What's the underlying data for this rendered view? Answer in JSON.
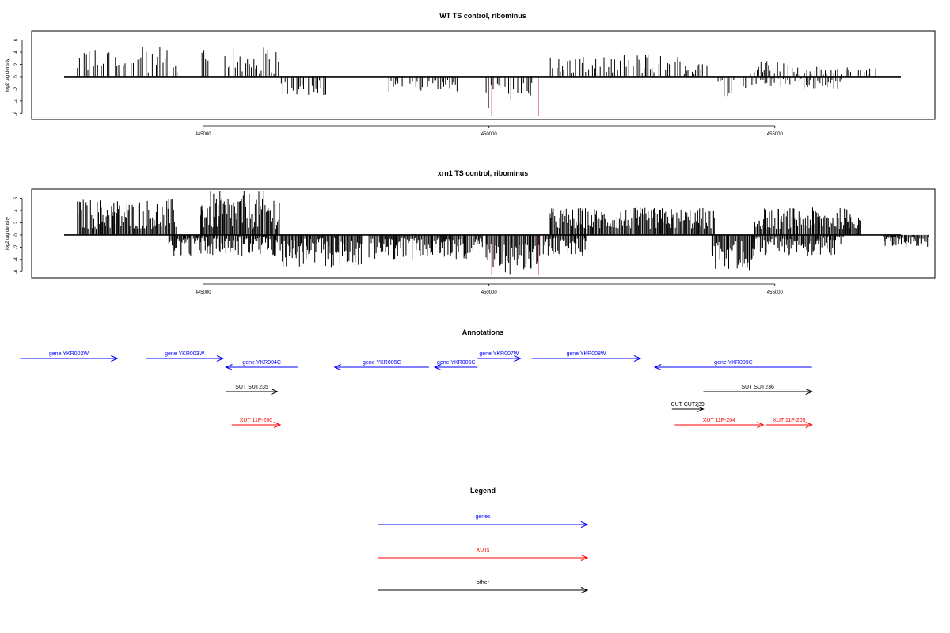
{
  "chart_data": [
    {
      "type": "bar",
      "title": "WT TS control, ribominus",
      "ylabel": "log2 tag density",
      "xlabel": "",
      "xlim": [
        442000,
        457800
      ],
      "ylim": [
        -7,
        7.5
      ],
      "grid": false,
      "x_ticks": [
        445000,
        450000,
        455000
      ],
      "x_tick_labels": [
        "445000",
        "450000",
        "455000"
      ],
      "y_ticks": [
        -6,
        -4,
        -2,
        0,
        2,
        4,
        6
      ],
      "y_tick_labels": [
        "-6",
        "-4",
        "-2",
        "0",
        "2",
        "4",
        "6"
      ],
      "density": "sparse",
      "series": [
        {
          "color": "#000000",
          "segments": [
            {
              "x0": 442800,
              "x1": 444550,
              "sign": 1,
              "min": 0.5,
              "max": 4.8
            },
            {
              "x0": 444980,
              "x1": 445150,
              "sign": 1,
              "min": 1.5,
              "max": 5.3
            },
            {
              "x0": 445380,
              "x1": 446350,
              "sign": 1,
              "min": 0.5,
              "max": 5.0
            },
            {
              "x0": 446300,
              "x1": 447150,
              "sign": -1,
              "min": 0.5,
              "max": 3.8
            },
            {
              "x0": 448250,
              "x1": 449450,
              "sign": -1,
              "min": 0.5,
              "max": 2.5
            },
            {
              "x0": 449950,
              "x1": 450800,
              "sign": -1,
              "min": 1.0,
              "max": 5.7
            },
            {
              "x0": 451050,
              "x1": 452200,
              "sign": 1,
              "min": 0.5,
              "max": 3.2
            },
            {
              "x0": 452250,
              "x1": 453000,
              "sign": 1,
              "min": 0.5,
              "max": 3.8
            },
            {
              "x0": 453000,
              "x1": 453950,
              "sign": 1,
              "min": 0.5,
              "max": 3.5
            },
            {
              "x0": 453900,
              "x1": 454500,
              "sign": -1,
              "min": 0.5,
              "max": 3.8
            },
            {
              "x0": 454550,
              "x1": 455400,
              "sign": 1,
              "min": 0.3,
              "max": 2.6
            },
            {
              "x0": 455400,
              "x1": 456800,
              "sign": 1,
              "min": 0.3,
              "max": 1.6
            },
            {
              "x0": 454600,
              "x1": 456200,
              "sign": -1,
              "min": 0.3,
              "max": 2.0
            }
          ]
        },
        {
          "color": "#cc0000",
          "bars": [
            {
              "x": 450050,
              "y": -6.5
            },
            {
              "x": 450860,
              "y": -6.5
            }
          ]
        }
      ]
    },
    {
      "type": "bar",
      "title": "xrn1 TS control, ribominus",
      "ylabel": "log2 tag density",
      "xlabel": "",
      "xlim": [
        442000,
        457800
      ],
      "ylim": [
        -7,
        7.5
      ],
      "grid": false,
      "x_ticks": [
        445000,
        450000,
        455000
      ],
      "x_tick_labels": [
        "445000",
        "450000",
        "455000"
      ],
      "y_ticks": [
        -6,
        -4,
        -2,
        0,
        2,
        4,
        6
      ],
      "y_tick_labels": [
        "-6",
        "-4",
        "-2",
        "0",
        "2",
        "4",
        "6"
      ],
      "density": "dense",
      "series": [
        {
          "color": "#000000",
          "segments": [
            {
              "x0": 442800,
              "x1": 444550,
              "sign": 1,
              "min": 1.0,
              "max": 6.0
            },
            {
              "x0": 444950,
              "x1": 446350,
              "sign": 1,
              "min": 1.0,
              "max": 7.2
            },
            {
              "x0": 444400,
              "x1": 446300,
              "sign": -1,
              "min": 0.3,
              "max": 3.5
            },
            {
              "x0": 446350,
              "x1": 447800,
              "sign": -1,
              "min": 0.5,
              "max": 5.5
            },
            {
              "x0": 447900,
              "x1": 449000,
              "sign": -1,
              "min": 0.5,
              "max": 4.0
            },
            {
              "x0": 449000,
              "x1": 449900,
              "sign": -1,
              "min": 0.5,
              "max": 4.0
            },
            {
              "x0": 449950,
              "x1": 450900,
              "sign": -1,
              "min": 1.5,
              "max": 6.5
            },
            {
              "x0": 450950,
              "x1": 451700,
              "sign": -1,
              "min": 0.5,
              "max": 3.5
            },
            {
              "x0": 451050,
              "x1": 453950,
              "sign": 1,
              "min": 1.0,
              "max": 4.5
            },
            {
              "x0": 453900,
              "x1": 454650,
              "sign": -1,
              "min": 1.0,
              "max": 5.8
            },
            {
              "x0": 454650,
              "x1": 456500,
              "sign": 1,
              "min": 1.0,
              "max": 4.5
            },
            {
              "x0": 454600,
              "x1": 456200,
              "sign": -1,
              "min": 0.3,
              "max": 3.5
            },
            {
              "x0": 456900,
              "x1": 457700,
              "sign": -1,
              "min": 0.3,
              "max": 2.0
            }
          ]
        },
        {
          "color": "#cc0000",
          "bars": [
            {
              "x": 450050,
              "y": -6.5
            },
            {
              "x": 450860,
              "y": -6.5
            }
          ]
        }
      ]
    }
  ],
  "annotations": {
    "title": "Annotations",
    "features": [
      {
        "label": "gene YKR002W",
        "type": "gene",
        "strand": "+",
        "start": 441800,
        "end": 443500,
        "row": 0
      },
      {
        "label": "gene YKR003W",
        "type": "gene",
        "strand": "+",
        "start": 444000,
        "end": 445350,
        "row": 0
      },
      {
        "label": "gene YKR004C",
        "type": "gene",
        "strand": "-",
        "start": 445400,
        "end": 446650,
        "row": 1
      },
      {
        "label": "gene YKR005C",
        "type": "gene",
        "strand": "-",
        "start": 447300,
        "end": 448950,
        "row": 1
      },
      {
        "label": "gene YKR006C",
        "type": "gene",
        "strand": "-",
        "start": 449050,
        "end": 449800,
        "row": 1
      },
      {
        "label": "gene YKR007W",
        "type": "gene",
        "strand": "+",
        "start": 449800,
        "end": 450550,
        "row": 0
      },
      {
        "label": "gene YKR008W",
        "type": "gene",
        "strand": "+",
        "start": 450750,
        "end": 452650,
        "row": 0
      },
      {
        "label": "gene YKR009C",
        "type": "gene",
        "strand": "-",
        "start": 452900,
        "end": 455650,
        "row": 1
      },
      {
        "label": "SUT SUT235",
        "type": "other",
        "strand": "+",
        "start": 445400,
        "end": 446300,
        "row": 3
      },
      {
        "label": "SUT SUT236",
        "type": "other",
        "strand": "+",
        "start": 453750,
        "end": 455650,
        "row": 3
      },
      {
        "label": "CUT CUT239",
        "type": "other",
        "strand": "+",
        "start": 453200,
        "end": 453750,
        "row": 4
      },
      {
        "label": "XUT 11F-200",
        "type": "XUT",
        "strand": "+",
        "start": 445500,
        "end": 446350,
        "row": 5
      },
      {
        "label": "XUT 11F-204",
        "type": "XUT",
        "strand": "+",
        "start": 453250,
        "end": 454800,
        "row": 5
      },
      {
        "label": "XUT 11F-205",
        "type": "XUT",
        "strand": "+",
        "start": 454850,
        "end": 455650,
        "row": 5
      }
    ]
  },
  "legend": {
    "title": "Legend",
    "entries": [
      {
        "label": "genes",
        "color": "#0000ff"
      },
      {
        "label": "XUTs",
        "color": "#ff0000"
      },
      {
        "label": "other",
        "color": "#000000"
      }
    ]
  },
  "colors": {
    "gene": "#0000ff",
    "XUT": "#ff0000",
    "other": "#000000"
  }
}
